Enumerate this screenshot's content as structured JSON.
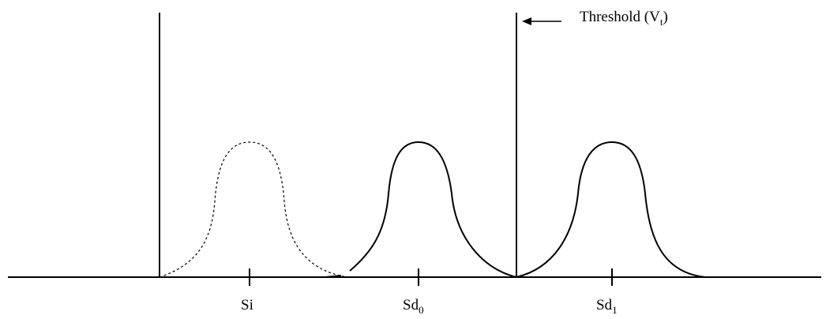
{
  "threshold": {
    "label": "Threshold (V",
    "subscript": "t",
    "label_close": ")"
  },
  "ticks": [
    {
      "base": "Si",
      "sub": ""
    },
    {
      "base": "Sd",
      "sub": "0"
    },
    {
      "base": "Sd",
      "sub": "1"
    }
  ],
  "colors": {
    "ink": "#000000",
    "background": "#ffffff"
  }
}
